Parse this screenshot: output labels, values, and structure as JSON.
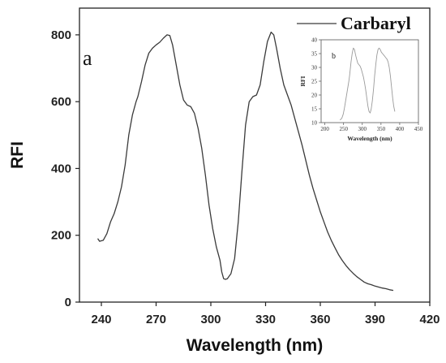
{
  "chart_data": [
    {
      "type": "line",
      "panel_label": "a",
      "xlabel": "Wavelength (nm)",
      "ylabel": "RFI",
      "xlim": [
        228,
        420
      ],
      "ylim": [
        0,
        880
      ],
      "xticks": [
        240,
        270,
        300,
        330,
        360,
        390,
        420
      ],
      "yticks": [
        0,
        200,
        400,
        600,
        800
      ],
      "grid": false,
      "legend": "top-right",
      "series": [
        {
          "name": "Carbaryl",
          "color": "#3a3a3a",
          "x": [
            238,
            239,
            241,
            243,
            245,
            247,
            249,
            251,
            253,
            255,
            257,
            259,
            260,
            262,
            264,
            266,
            268,
            270,
            272,
            274,
            276,
            277.5,
            279,
            281,
            283,
            285,
            287,
            289,
            291,
            293,
            295,
            297,
            299,
            301,
            303,
            305,
            306,
            307,
            308,
            309,
            311,
            313,
            315,
            317,
            319,
            321,
            323,
            325,
            327,
            329,
            331,
            333,
            334.5,
            336,
            338,
            340,
            342,
            344,
            346,
            348,
            350,
            352,
            354,
            356,
            358,
            360,
            362,
            364,
            366,
            368,
            370,
            372,
            374,
            376,
            378,
            380,
            382,
            384,
            386,
            388,
            390,
            392,
            394,
            396,
            398,
            400
          ],
          "y": [
            190,
            182,
            185,
            205,
            240,
            265,
            300,
            345,
            410,
            500,
            560,
            600,
            615,
            660,
            710,
            745,
            760,
            770,
            778,
            790,
            800,
            798,
            770,
            710,
            650,
            605,
            590,
            585,
            565,
            520,
            460,
            380,
            290,
            220,
            165,
            125,
            90,
            70,
            68,
            70,
            85,
            130,
            240,
            390,
            530,
            600,
            615,
            620,
            650,
            720,
            780,
            808,
            800,
            760,
            700,
            650,
            620,
            590,
            550,
            510,
            470,
            425,
            380,
            340,
            305,
            270,
            240,
            210,
            185,
            163,
            142,
            125,
            110,
            97,
            86,
            76,
            68,
            60,
            55,
            52,
            48,
            45,
            42,
            40,
            37,
            35
          ]
        }
      ]
    },
    {
      "type": "line",
      "panel_label": "b",
      "xlabel": "Wavelength (nm)",
      "ylabel": "RFI",
      "xlim": [
        190,
        450
      ],
      "ylim": [
        10,
        40
      ],
      "xticks": [
        200,
        250,
        300,
        350,
        400,
        450
      ],
      "yticks": [
        10,
        15,
        20,
        25,
        30,
        35,
        40
      ],
      "grid": false,
      "series": [
        {
          "color": "#9a9a9a",
          "x": [
            240,
            243,
            246,
            249,
            252,
            255,
            258,
            261,
            264,
            266,
            268,
            270,
            273,
            276,
            279,
            282,
            285,
            288,
            291,
            294,
            297,
            300,
            303,
            306,
            309,
            312,
            315,
            318,
            321,
            324,
            327,
            330,
            333,
            336,
            339,
            342,
            345,
            348,
            351,
            354,
            357,
            360,
            363,
            366,
            369,
            372,
            375,
            378,
            381,
            384,
            387
          ],
          "y": [
            11,
            11.2,
            11.8,
            13,
            15,
            17.5,
            20,
            22.5,
            25,
            27,
            29.5,
            32,
            35,
            37,
            36.5,
            34.5,
            33,
            31.5,
            31,
            30.5,
            29.5,
            28,
            26.5,
            24.5,
            22,
            19,
            16,
            14,
            13.5,
            15,
            18,
            22,
            27,
            31,
            34.5,
            36.5,
            37,
            36.5,
            35.5,
            35,
            34.5,
            34,
            33.5,
            33,
            32,
            30,
            27,
            23,
            19,
            16,
            14
          ]
        }
      ]
    }
  ]
}
